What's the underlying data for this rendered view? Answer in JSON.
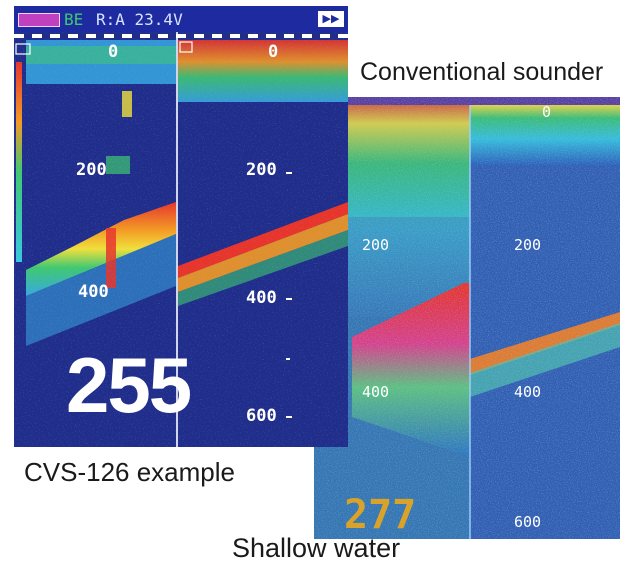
{
  "captions": {
    "conventional": "Conventional sounder",
    "cvs": "CVS-126 example",
    "shallow": "Shallow water"
  },
  "left_screen": {
    "header_status": "R:A  23.4V",
    "header_mode": "BE",
    "depth_labels": [
      "0",
      "0",
      "200",
      "200",
      "400",
      "400",
      "600"
    ],
    "big_number": "255"
  },
  "right_screen": {
    "depth_labels": [
      "0",
      "200",
      "200",
      "400",
      "400",
      "600"
    ],
    "number": "277"
  },
  "colors": {
    "background_blue": "#202d8a",
    "bottom_red": "#e8342a",
    "bottom_orange": "#f59a22",
    "bottom_yellow": "#f2e03a",
    "surface_cyan": "#38c8e0",
    "surface_green": "#3fc870",
    "number_gold": "#d9a22a"
  }
}
